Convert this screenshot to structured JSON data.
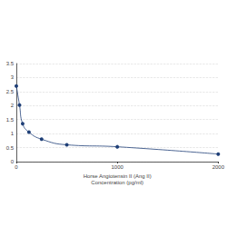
{
  "chart_data": {
    "type": "line",
    "x_label": "Horse Angiotensin II (Ang II)\nConcentration (pg/ml)",
    "x": [
      0,
      31.25,
      62.5,
      125,
      250,
      500,
      1000,
      2000
    ],
    "series": [
      {
        "color": "#1f3f77",
        "values": [
          2.7,
          2.02,
          1.35,
          1.05,
          0.8,
          0.6,
          0.53,
          0.27
        ],
        "marker": "circle",
        "line_style": "solid"
      }
    ],
    "xlim": [
      0,
      2000
    ],
    "xticks": [
      0,
      1000,
      2000
    ],
    "ylim": [
      0,
      3.5
    ],
    "yticks": [
      0,
      0.5,
      1,
      1.5,
      2,
      2.5,
      3,
      3.5
    ],
    "grid": true
  }
}
